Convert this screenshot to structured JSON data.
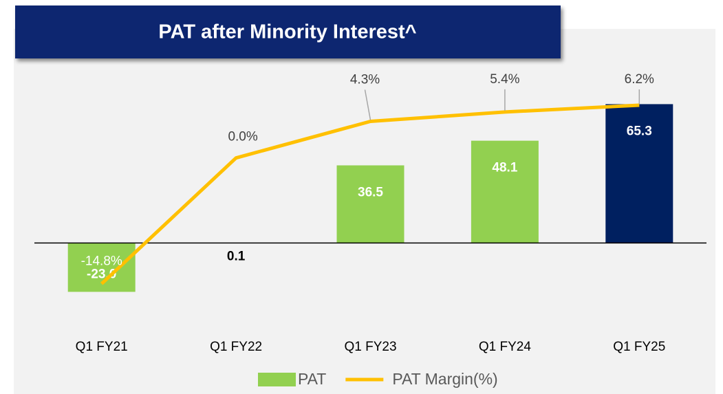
{
  "chart_data": {
    "type": "bar_line",
    "title": "PAT after Minority Interest^",
    "categories": [
      "Q1 FY21",
      "Q1 FY22",
      "Q1 FY23",
      "Q1 FY24",
      "Q1 FY25"
    ],
    "series": [
      {
        "name": "PAT",
        "type": "bar",
        "color": "#92d050",
        "colors": [
          "#92d050",
          "#92d050",
          "#92d050",
          "#92d050",
          "#002060"
        ],
        "values": [
          -23.0,
          0.1,
          36.5,
          48.1,
          65.3
        ],
        "value_labels": [
          "-23.0",
          "0.1",
          "36.5",
          "48.1",
          "65.3"
        ]
      },
      {
        "name": "PAT Margin(%)",
        "type": "line",
        "axis": "y2",
        "color": "#ffc000",
        "values": [
          -14.8,
          0.0,
          4.3,
          5.4,
          6.2
        ],
        "value_labels": [
          "-14.8%",
          "0.0%",
          "4.3%",
          "5.4%",
          "6.2%"
        ]
      }
    ],
    "ylim": [
      -40,
      80
    ],
    "y2lim": [
      -20,
      10
    ],
    "legend": "bottom"
  }
}
